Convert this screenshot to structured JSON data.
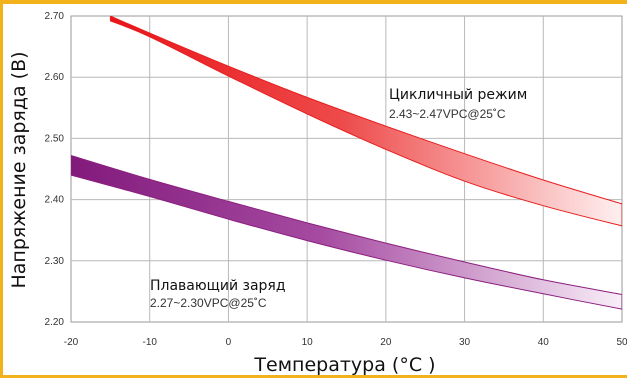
{
  "chart_data": {
    "type": "area",
    "xlabel": "Температура (°C )",
    "ylabel": "Напряжение заряда (В)",
    "xlim": [
      -20,
      50
    ],
    "ylim": [
      2.2,
      2.7
    ],
    "x_ticks": [
      "-20",
      "-10",
      "0",
      "10",
      "20",
      "30",
      "40",
      "50"
    ],
    "y_ticks": [
      "2.20",
      "2.30",
      "2.40",
      "2.50",
      "2.60",
      "2.70"
    ],
    "grid": true,
    "series": [
      {
        "label": "Цикличный режим",
        "spec": "2.43~2.47VPC@25˚C",
        "color": "#e81e1e",
        "x": [
          -15,
          -10,
          0,
          10,
          20,
          30,
          40,
          50
        ],
        "upper": [
          2.7,
          2.672,
          2.618,
          2.567,
          2.52,
          2.475,
          2.432,
          2.393
        ],
        "lower": [
          2.692,
          2.666,
          2.602,
          2.54,
          2.482,
          2.43,
          2.39,
          2.357
        ]
      },
      {
        "label": "Плавающий заряд",
        "spec": "2.27~2.30VPC@25˚C",
        "color": "#8c1f7f",
        "x": [
          -20,
          -10,
          0,
          10,
          20,
          30,
          40,
          50
        ],
        "upper": [
          2.472,
          2.433,
          2.397,
          2.362,
          2.329,
          2.298,
          2.269,
          2.245
        ],
        "lower": [
          2.44,
          2.405,
          2.368,
          2.333,
          2.301,
          2.272,
          2.246,
          2.221
        ]
      }
    ]
  }
}
